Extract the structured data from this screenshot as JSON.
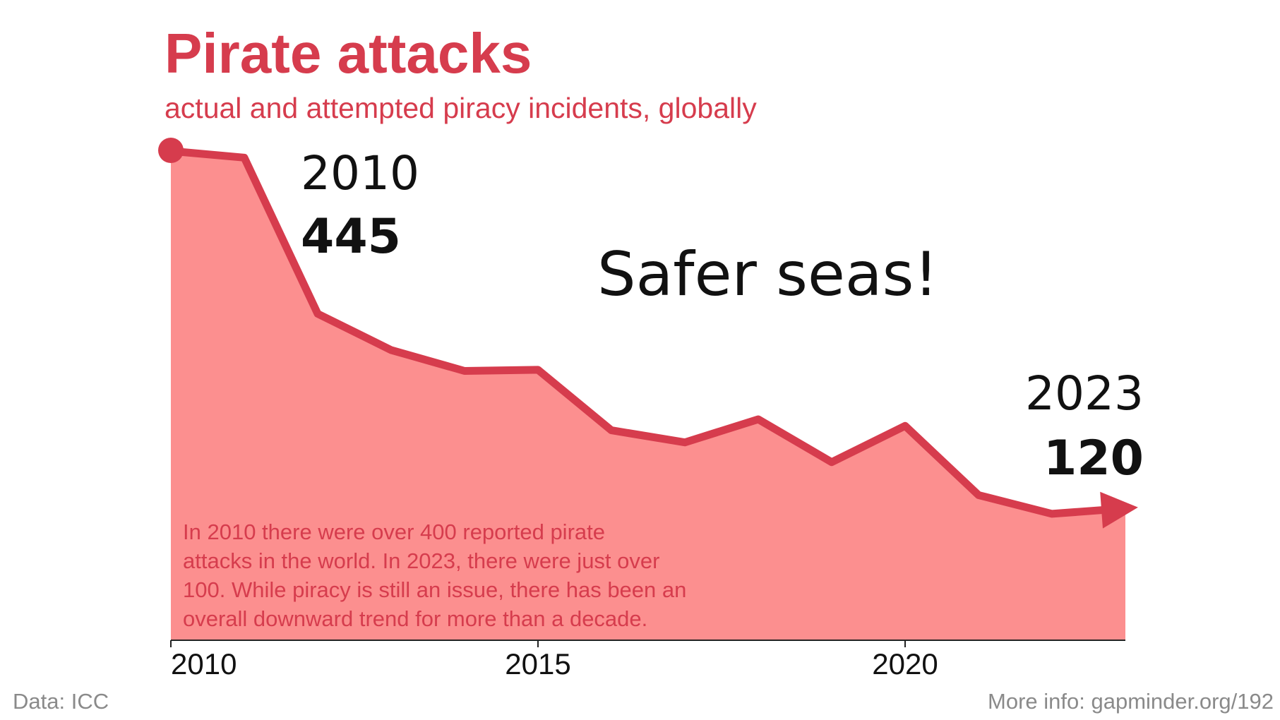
{
  "chart_data": {
    "type": "area",
    "title": "Pirate attacks",
    "subtitle": "actual and attempted piracy incidents, globally",
    "x": [
      2010,
      2011,
      2012,
      2013,
      2014,
      2015,
      2016,
      2017,
      2018,
      2019,
      2020,
      2021,
      2022,
      2023
    ],
    "series": [
      {
        "values": [
          445,
          439,
          297,
          264,
          245,
          246,
          191,
          180,
          201,
          162,
          195,
          132,
          115,
          120
        ]
      }
    ],
    "xlim": [
      2010,
      2023
    ],
    "ylim": [
      0,
      445
    ],
    "xticks": [
      "2010",
      "2015",
      "2020"
    ],
    "grid": false,
    "legend": "none",
    "annotations": {
      "start": {
        "year": "2010",
        "value": "445"
      },
      "end": {
        "year": "2023",
        "value": "120"
      },
      "headline": "Safer seas!",
      "note_lines": [
        "In 2010 there were over 400 reported pirate",
        "attacks in the world.  In 2023, there were just over",
        "100. While piracy is still an issue, there has been an",
        "overall downward trend for more than a decade."
      ]
    },
    "footer": {
      "source": "Data: ICC",
      "more_info": "More info: gapminder.org/192"
    },
    "colors": {
      "line": "#d63c4d",
      "area": "#fc8f8f",
      "title": "#d63c4d",
      "note": "#d63c4d",
      "footer": "#8a8a8a",
      "axis": "#222222"
    }
  }
}
